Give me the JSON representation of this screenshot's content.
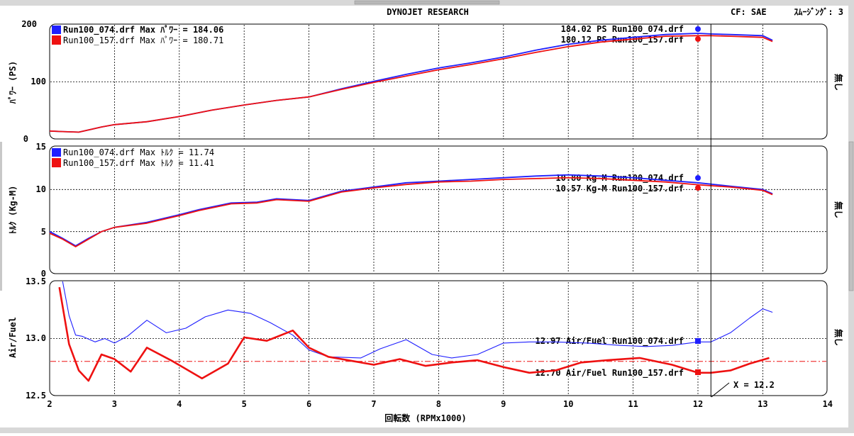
{
  "header": {
    "title": "DYNOJET  RESEARCH",
    "cf_label": "CF: SAE",
    "smoothing": "ｽﾑｰｼﾞﾝｸﾞ: 3"
  },
  "colors": {
    "run074": "#1f1fff",
    "run157": "#ee1111",
    "ref_line": "#ee1111",
    "grid": "#000000"
  },
  "x_axis": {
    "label": "回転数 (RPMx1000)",
    "ticks": [
      "2",
      "3",
      "4",
      "5",
      "6",
      "7",
      "8",
      "9",
      "10",
      "11",
      "12",
      "13",
      "14"
    ]
  },
  "chart_data": [
    {
      "type": "line",
      "panel": "power",
      "ylabel": "ﾊﾟﾜｰ (PS)",
      "side_label": "無し",
      "ylim": [
        0,
        200
      ],
      "yticks": [
        "200",
        "100",
        "0"
      ],
      "legend": [
        "Run100_074.drf Max ﾊﾟﾜｰ = 184.06",
        "Run100_157.drf Max ﾊﾟﾜｰ = 180.71"
      ],
      "annotations": [
        "184.02 PS Run100_074.drf",
        "180.12 PS Run100_157.drf"
      ],
      "series": [
        {
          "name": "Run100_074.drf",
          "x": [
            2.0,
            2.2,
            2.45,
            2.8,
            3.0,
            3.5,
            4.0,
            4.5,
            5.0,
            5.5,
            6.0,
            6.5,
            7.0,
            7.5,
            8.0,
            8.5,
            9.0,
            9.5,
            10.0,
            10.5,
            11.0,
            11.5,
            12.0,
            12.2,
            12.5,
            13.0,
            13.15
          ],
          "y": [
            15,
            14,
            13,
            22,
            26,
            31,
            40,
            51,
            60,
            68,
            74,
            88,
            101,
            113,
            124,
            133,
            143,
            155,
            165,
            172,
            177,
            182,
            184,
            183,
            182,
            180,
            172
          ]
        },
        {
          "name": "Run100_157.drf",
          "x": [
            2.0,
            2.2,
            2.45,
            2.8,
            3.0,
            3.5,
            4.0,
            4.5,
            5.0,
            5.5,
            6.0,
            6.5,
            7.0,
            7.5,
            8.0,
            8.5,
            9.0,
            9.5,
            10.0,
            10.5,
            11.0,
            11.5,
            12.0,
            12.2,
            12.5,
            13.0,
            13.15
          ],
          "y": [
            15,
            14,
            13,
            22,
            26,
            31,
            40,
            51,
            60,
            68,
            74,
            87,
            99,
            110,
            121,
            130,
            140,
            151,
            161,
            169,
            174,
            179,
            180,
            180,
            179,
            177,
            170
          ]
        }
      ]
    },
    {
      "type": "line",
      "panel": "torque",
      "ylabel": "ﾄﾙｸ (Kg-M)",
      "side_label": "無し",
      "ylim": [
        0,
        15
      ],
      "yticks": [
        "15",
        "10",
        "5",
        "0"
      ],
      "legend": [
        "Run100_074.drf Max ﾄﾙｸ = 11.74",
        "Run100_157.drf Max ﾄﾙｸ = 11.41"
      ],
      "annotations": [
        "10.80 Kg-M Run100_074.drf",
        "10.57 Kg-M Run100_157.drf"
      ],
      "series": [
        {
          "name": "Run100_074.drf",
          "x": [
            2.0,
            2.2,
            2.4,
            2.6,
            2.8,
            3.0,
            3.5,
            4.0,
            4.3,
            4.8,
            5.2,
            5.5,
            6.0,
            6.5,
            7.0,
            7.5,
            8.0,
            8.5,
            9.0,
            9.5,
            10.0,
            10.5,
            11.0,
            11.5,
            12.0,
            12.5,
            13.0,
            13.15
          ],
          "y": [
            5.0,
            4.2,
            3.3,
            4.2,
            5.0,
            5.5,
            6.1,
            7.0,
            7.6,
            8.4,
            8.5,
            8.9,
            8.7,
            9.8,
            10.3,
            10.8,
            11.0,
            11.2,
            11.4,
            11.6,
            11.74,
            11.6,
            11.4,
            11.1,
            10.8,
            10.4,
            10.0,
            9.5
          ]
        },
        {
          "name": "Run100_157.drf",
          "x": [
            2.0,
            2.2,
            2.4,
            2.6,
            2.8,
            3.0,
            3.5,
            4.0,
            4.3,
            4.8,
            5.2,
            5.5,
            6.0,
            6.5,
            7.0,
            7.5,
            8.0,
            8.5,
            9.0,
            9.5,
            10.0,
            10.5,
            11.0,
            11.5,
            12.0,
            12.5,
            13.0,
            13.15
          ],
          "y": [
            4.8,
            4.1,
            3.2,
            4.1,
            5.0,
            5.5,
            6.0,
            6.9,
            7.5,
            8.3,
            8.4,
            8.8,
            8.6,
            9.7,
            10.2,
            10.6,
            10.9,
            11.0,
            11.2,
            11.3,
            11.41,
            11.3,
            11.1,
            10.9,
            10.57,
            10.3,
            9.9,
            9.4
          ]
        }
      ]
    },
    {
      "type": "line",
      "panel": "air_fuel",
      "ylabel": "Air/Fuel",
      "side_label": "無し",
      "ylim": [
        12.5,
        13.5
      ],
      "yticks": [
        "13.5",
        "13.0",
        "12.5"
      ],
      "reference_y": 12.8,
      "annotations": [
        "12.97 Air/Fuel Run100_074.drf",
        "12.70 Air/Fuel Run100_157.drf"
      ],
      "cursor_label": "X = 12.2",
      "series": [
        {
          "name": "Run100_074.drf",
          "x": [
            2.2,
            2.3,
            2.4,
            2.5,
            2.7,
            2.85,
            3.0,
            3.2,
            3.5,
            3.8,
            4.1,
            4.4,
            4.75,
            5.1,
            5.4,
            5.75,
            6.0,
            6.3,
            6.8,
            7.1,
            7.5,
            7.9,
            8.2,
            8.6,
            9.0,
            9.4,
            9.8,
            10.3,
            10.8,
            11.2,
            11.6,
            12.0,
            12.2,
            12.5,
            12.8,
            13.0,
            13.15
          ],
          "y": [
            13.5,
            13.2,
            13.03,
            13.02,
            12.97,
            13.0,
            12.96,
            13.02,
            13.16,
            13.05,
            13.09,
            13.19,
            13.25,
            13.22,
            13.14,
            13.03,
            12.9,
            12.84,
            12.83,
            12.91,
            12.99,
            12.86,
            12.83,
            12.86,
            12.96,
            12.97,
            12.97,
            12.96,
            12.94,
            12.93,
            12.94,
            12.97,
            12.97,
            13.05,
            13.18,
            13.26,
            13.23
          ]
        },
        {
          "name": "Run100_157.drf",
          "x": [
            2.15,
            2.3,
            2.45,
            2.6,
            2.8,
            3.0,
            3.25,
            3.5,
            3.9,
            4.35,
            4.75,
            5.0,
            5.35,
            5.75,
            6.0,
            6.3,
            6.7,
            7.0,
            7.4,
            7.8,
            8.2,
            8.6,
            9.0,
            9.4,
            9.8,
            10.2,
            10.6,
            11.1,
            11.6,
            12.0,
            12.2,
            12.5,
            12.8,
            13.1
          ],
          "y": [
            13.45,
            12.95,
            12.72,
            12.63,
            12.86,
            12.82,
            12.71,
            12.92,
            12.8,
            12.65,
            12.78,
            13.01,
            12.98,
            13.07,
            12.92,
            12.84,
            12.8,
            12.77,
            12.82,
            12.76,
            12.79,
            12.81,
            12.75,
            12.7,
            12.72,
            12.79,
            12.81,
            12.83,
            12.77,
            12.7,
            12.7,
            12.72,
            12.78,
            12.83
          ]
        }
      ]
    }
  ]
}
